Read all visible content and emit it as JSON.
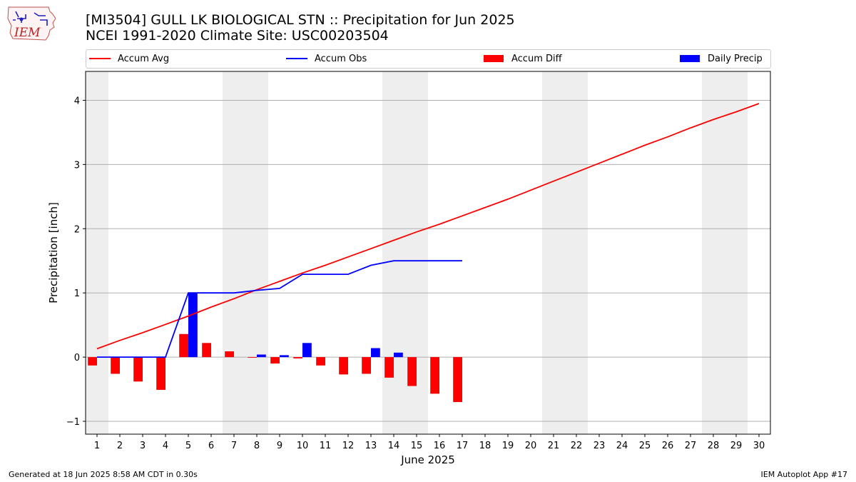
{
  "header": {
    "title_line1": "[MI3504] GULL LK BIOLOGICAL STN :: Precipitation for Jun 2025",
    "title_line2": "NCEI 1991-2020 Climate Site: USC00203504"
  },
  "logo": {
    "text": "IEM"
  },
  "footer": {
    "left": "Generated at 18 Jun 2025 8:58 AM CDT in 0.30s",
    "right": "IEM Autoplot App #17"
  },
  "colors": {
    "avg": "#ff0000",
    "obs": "#0000ff",
    "diff": "#ff0000",
    "daily": "#0000ff",
    "weekend": "#eeeeee",
    "grid": "#b0b0b0"
  },
  "chart_data": {
    "type": "bar",
    "xlabel": "June 2025",
    "ylabel": "Precipitation [inch]",
    "ylim": [
      -1.2,
      4.45
    ],
    "xlim": [
      0.5,
      30.5
    ],
    "yticks": [
      -1,
      0,
      1,
      2,
      3,
      4
    ],
    "ytick_labels": [
      "−1",
      "0",
      "1",
      "2",
      "3",
      "4"
    ],
    "xticks": [
      1,
      2,
      3,
      4,
      5,
      6,
      7,
      8,
      9,
      10,
      11,
      12,
      13,
      14,
      15,
      16,
      17,
      18,
      19,
      20,
      21,
      22,
      23,
      24,
      25,
      26,
      27,
      28,
      29,
      30
    ],
    "xtick_labels": [
      "1",
      "2",
      "3",
      "4",
      "5",
      "6",
      "7",
      "8",
      "9",
      "10",
      "11",
      "12",
      "13",
      "14",
      "15",
      "16",
      "17",
      "18",
      "19",
      "20",
      "21",
      "22",
      "23",
      "24",
      "25",
      "26",
      "27",
      "28",
      "29",
      "30"
    ],
    "grid": "horizontal",
    "legend_position": "top",
    "weekend_bands": [
      [
        0.5,
        1.5
      ],
      [
        6.5,
        8.5
      ],
      [
        13.5,
        15.5
      ],
      [
        20.5,
        22.5
      ],
      [
        27.5,
        29.5
      ]
    ],
    "series": [
      {
        "name": "Accum Avg",
        "type": "line",
        "x": [
          1,
          2,
          3,
          4,
          5,
          6,
          7,
          8,
          9,
          10,
          11,
          12,
          13,
          14,
          15,
          16,
          17,
          18,
          19,
          20,
          21,
          22,
          23,
          24,
          25,
          26,
          27,
          28,
          29,
          30
        ],
        "values": [
          0.13,
          0.26,
          0.38,
          0.51,
          0.64,
          0.78,
          0.91,
          1.05,
          1.18,
          1.31,
          1.43,
          1.56,
          1.69,
          1.82,
          1.95,
          2.07,
          2.2,
          2.33,
          2.46,
          2.6,
          2.74,
          2.88,
          3.02,
          3.16,
          3.3,
          3.43,
          3.57,
          3.7,
          3.82,
          3.95
        ]
      },
      {
        "name": "Accum Obs",
        "type": "line",
        "x": [
          1,
          2,
          3,
          4,
          5,
          6,
          7,
          8,
          9,
          10,
          11,
          12,
          13,
          14,
          15,
          16,
          17
        ],
        "values": [
          0.0,
          0.0,
          0.0,
          0.0,
          1.0,
          1.0,
          1.0,
          1.04,
          1.07,
          1.29,
          1.29,
          1.29,
          1.43,
          1.5,
          1.5,
          1.5,
          1.5
        ]
      },
      {
        "name": "Accum Diff",
        "type": "bar",
        "x": [
          1,
          2,
          3,
          4,
          5,
          6,
          7,
          8,
          9,
          10,
          11,
          12,
          13,
          14,
          15,
          16,
          17
        ],
        "values": [
          -0.13,
          -0.26,
          -0.38,
          -0.51,
          0.36,
          0.22,
          0.09,
          -0.01,
          -0.1,
          -0.02,
          -0.13,
          -0.27,
          -0.26,
          -0.32,
          -0.45,
          -0.57,
          -0.7
        ]
      },
      {
        "name": "Daily Precip",
        "type": "bar",
        "x": [
          1,
          2,
          3,
          4,
          5,
          6,
          7,
          8,
          9,
          10,
          11,
          12,
          13,
          14,
          15,
          16,
          17
        ],
        "values": [
          0,
          0,
          0,
          0,
          1.0,
          0,
          0,
          0.04,
          0.03,
          0.22,
          0,
          0,
          0.14,
          0.07,
          0,
          0,
          0
        ]
      }
    ]
  }
}
